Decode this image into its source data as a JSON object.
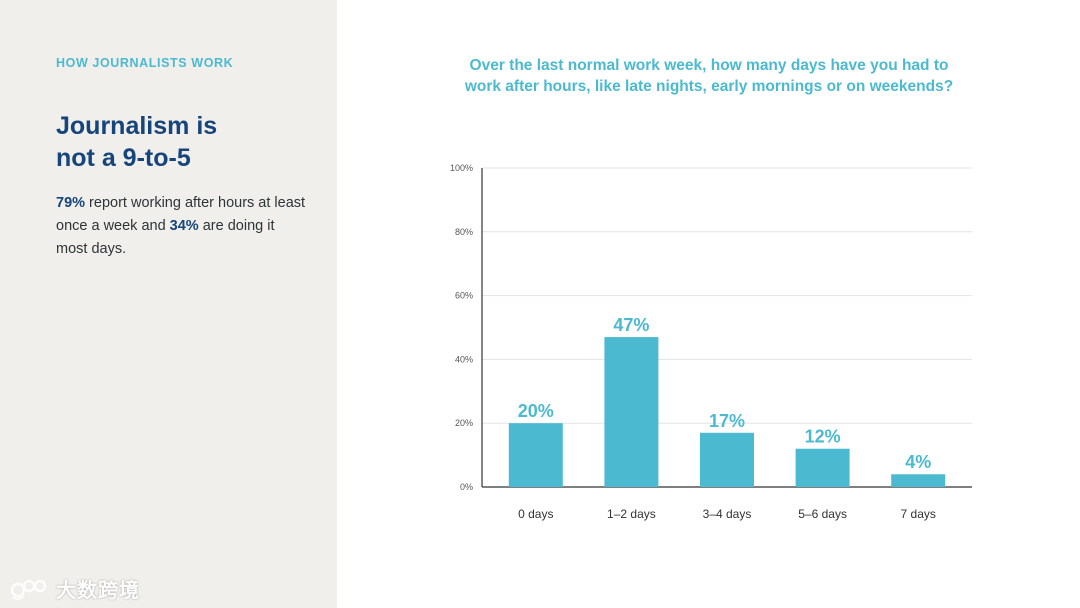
{
  "left": {
    "eyebrow": "HOW JOURNALISTS WORK",
    "headline_line1": "Journalism is",
    "headline_line2": "not a 9-to-5",
    "summary": {
      "stat1": "79%",
      "text1": " report working after hours at least once a week and ",
      "stat2": "34%",
      "text2": " are doing it most days."
    }
  },
  "watermark": {
    "icon": "logo-icon",
    "text": "大数跨境"
  },
  "colors": {
    "accent": "#4bbad1",
    "headline": "#15457a",
    "panel_bg": "#f0efec"
  },
  "chart_data": {
    "type": "bar",
    "title_line1": "Over the last normal work week, how many days have you had to",
    "title_line2": "work after hours, like late nights, early mornings or on weekends?",
    "categories": [
      "0 days",
      "1–2 days",
      "3–4 days",
      "5–6 days",
      "7 days"
    ],
    "values": [
      20,
      47,
      17,
      12,
      4
    ],
    "value_labels": [
      "20%",
      "47%",
      "17%",
      "12%",
      "4%"
    ],
    "y_ticks": [
      0,
      20,
      40,
      60,
      80,
      100
    ],
    "y_tick_labels": [
      "0%",
      "20%",
      "40%",
      "60%",
      "80%",
      "100%"
    ],
    "ylim": [
      0,
      100
    ],
    "grid": true,
    "bar_color": "#4bbad1"
  }
}
